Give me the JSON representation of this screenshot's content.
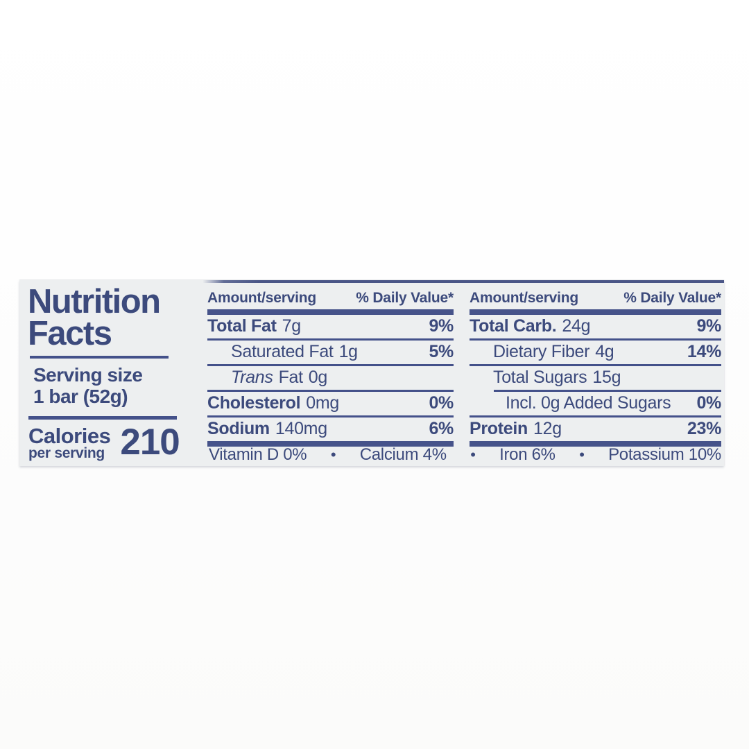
{
  "label": {
    "accent_color": "#3c4a7c",
    "bg_color": "#edeff0",
    "title": {
      "line1": "Nutrition",
      "line2": "Facts"
    },
    "serving": {
      "label": "Serving size",
      "value": "1 bar (52g)"
    },
    "calories": {
      "label": "Calories",
      "sublabel": "per serving",
      "value": "210"
    },
    "columns": [
      {
        "header": {
          "amount": "Amount/serving",
          "dv": "% Daily Value*"
        },
        "rows": [
          {
            "name": "Total Fat",
            "amount": "7g",
            "dv": "9%"
          },
          {
            "name": "Saturated Fat",
            "amount": "1g",
            "dv": "5%"
          },
          {
            "name_italic": "Trans",
            "name": "Fat",
            "amount": "0g",
            "dv": ""
          },
          {
            "name": "Cholesterol",
            "amount": "0mg",
            "dv": "0%"
          },
          {
            "name": "Sodium",
            "amount": "140mg",
            "dv": "6%"
          }
        ]
      },
      {
        "header": {
          "amount": "Amount/serving",
          "dv": "% Daily Value*"
        },
        "rows": [
          {
            "name": "Total Carb.",
            "amount": "24g",
            "dv": "9%"
          },
          {
            "name": "Dietary Fiber",
            "amount": "4g",
            "dv": "14%"
          },
          {
            "name": "Total Sugars",
            "amount": "15g",
            "dv": ""
          },
          {
            "name": "Incl. 0g Added Sugars",
            "amount": "",
            "dv": "0%"
          },
          {
            "name": "Protein",
            "amount": "12g",
            "dv": "23%"
          }
        ]
      }
    ],
    "micronutrients": {
      "separator": "•",
      "items": [
        "Vitamin D 0%",
        "Calcium 4%",
        "Iron 6%",
        "Potassium 10%"
      ]
    }
  }
}
